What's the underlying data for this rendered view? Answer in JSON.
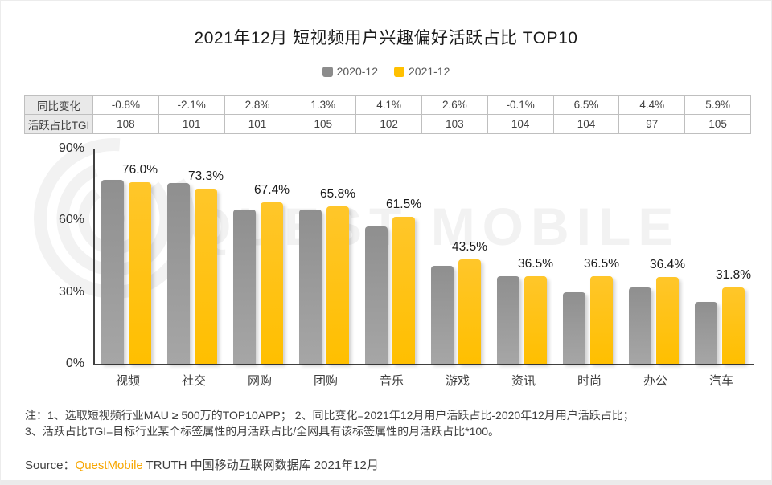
{
  "title": "2021年12月 短视频用户兴趣偏好活跃占比 TOP10",
  "legend": [
    {
      "label": "2020-12",
      "color": "#8c8c8c"
    },
    {
      "label": "2021-12",
      "color": "#ffc000"
    }
  ],
  "table": {
    "rows": [
      {
        "label": "同比变化",
        "values": [
          "-0.8%",
          "-2.1%",
          "2.8%",
          "1.3%",
          "4.1%",
          "2.6%",
          "-0.1%",
          "6.5%",
          "4.4%",
          "5.9%"
        ]
      },
      {
        "label": "活跃占比TGI",
        "values": [
          "108",
          "101",
          "101",
          "105",
          "102",
          "103",
          "104",
          "104",
          "97",
          "105"
        ]
      }
    ]
  },
  "chart_data": {
    "type": "bar",
    "title": "2021年12月 短视频用户兴趣偏好活跃占比 TOP10",
    "categories": [
      "视频",
      "社交",
      "网购",
      "团购",
      "音乐",
      "游戏",
      "资讯",
      "时尚",
      "办公",
      "汽车"
    ],
    "series": [
      {
        "name": "2020-12",
        "color": "#8c8c8c",
        "gradient": [
          "#8f8f8f",
          "#a6a6a6"
        ],
        "values": [
          76.8,
          75.4,
          64.6,
          64.5,
          57.4,
          40.9,
          36.6,
          30.0,
          32.0,
          25.9
        ]
      },
      {
        "name": "2021-12",
        "color": "#ffc000",
        "gradient": [
          "#ffc62a",
          "#ffbf00"
        ],
        "values": [
          76.0,
          73.3,
          67.4,
          65.8,
          61.5,
          43.5,
          36.5,
          36.5,
          36.4,
          31.8
        ]
      }
    ],
    "data_labels": [
      "76.0%",
      "73.3%",
      "67.4%",
      "65.8%",
      "61.5%",
      "43.5%",
      "36.5%",
      "36.5%",
      "36.4%",
      "31.8%"
    ],
    "yticks": [
      "90%",
      "60%",
      "30%",
      "0%"
    ],
    "ylim": [
      0,
      90
    ],
    "grid": false,
    "legend_position": "top"
  },
  "notes": {
    "line1": "注：1、选取短视频行业MAU ≥ 500万的TOP10APP；  2、同比变化=2021年12月用户活跃占比-2020年12月用户活跃占比；",
    "line2": "3、活跃占比TGI=目标行业某个标签属性的月活跃占比/全网具有该标签属性的月活跃占比*100。"
  },
  "source": {
    "prefix": "Source：",
    "brand": "QuestMobile",
    "suffix": " TRUTH 中国移动互联网数据库 2021年12月",
    "brand_color": "#f7a600"
  },
  "watermark": "QUEST MOBILE"
}
